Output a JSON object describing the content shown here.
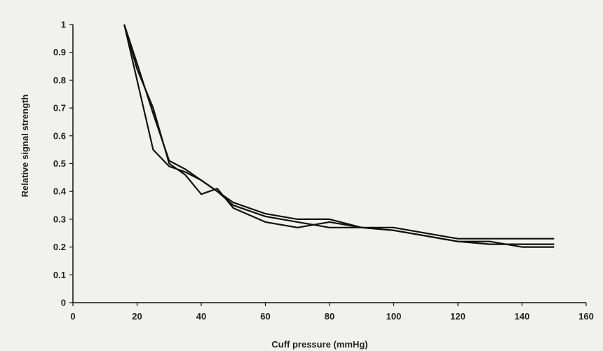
{
  "chart_data": {
    "type": "line",
    "xlabel": "Cuff pressure (mmHg)",
    "ylabel": "Relative signal strength",
    "xlim": [
      0,
      160
    ],
    "ylim": [
      0,
      1
    ],
    "xticks": [
      0,
      20,
      40,
      60,
      80,
      100,
      120,
      140,
      160
    ],
    "yticks": [
      0,
      0.1,
      0.2,
      0.3,
      0.4,
      0.5,
      0.6,
      0.7,
      0.8,
      0.9,
      1
    ],
    "grid": false,
    "legend": "none",
    "line_color": "#111111",
    "series": [
      {
        "x": [
          16,
          20,
          25,
          30,
          35,
          40,
          45,
          50,
          60,
          70,
          80,
          90,
          100,
          110,
          120,
          130,
          140,
          150
        ],
        "y": [
          1.0,
          0.84,
          0.7,
          0.5,
          0.46,
          0.39,
          0.41,
          0.34,
          0.29,
          0.27,
          0.29,
          0.27,
          0.26,
          0.24,
          0.22,
          0.21,
          0.21,
          0.21
        ]
      },
      {
        "x": [
          16,
          20,
          25,
          30,
          35,
          40,
          45,
          50,
          60,
          70,
          80,
          90,
          100,
          110,
          120,
          130,
          140,
          150
        ],
        "y": [
          1.0,
          0.8,
          0.55,
          0.49,
          0.47,
          0.44,
          0.4,
          0.35,
          0.31,
          0.29,
          0.27,
          0.27,
          0.26,
          0.24,
          0.22,
          0.22,
          0.2,
          0.2
        ]
      },
      {
        "x": [
          16,
          20,
          25,
          30,
          35,
          40,
          45,
          50,
          60,
          70,
          80,
          90,
          100,
          110,
          120,
          130,
          140,
          150
        ],
        "y": [
          1.0,
          0.86,
          0.68,
          0.51,
          0.48,
          0.44,
          0.4,
          0.36,
          0.32,
          0.3,
          0.3,
          0.27,
          0.27,
          0.25,
          0.23,
          0.23,
          0.23,
          0.23
        ]
      }
    ]
  }
}
